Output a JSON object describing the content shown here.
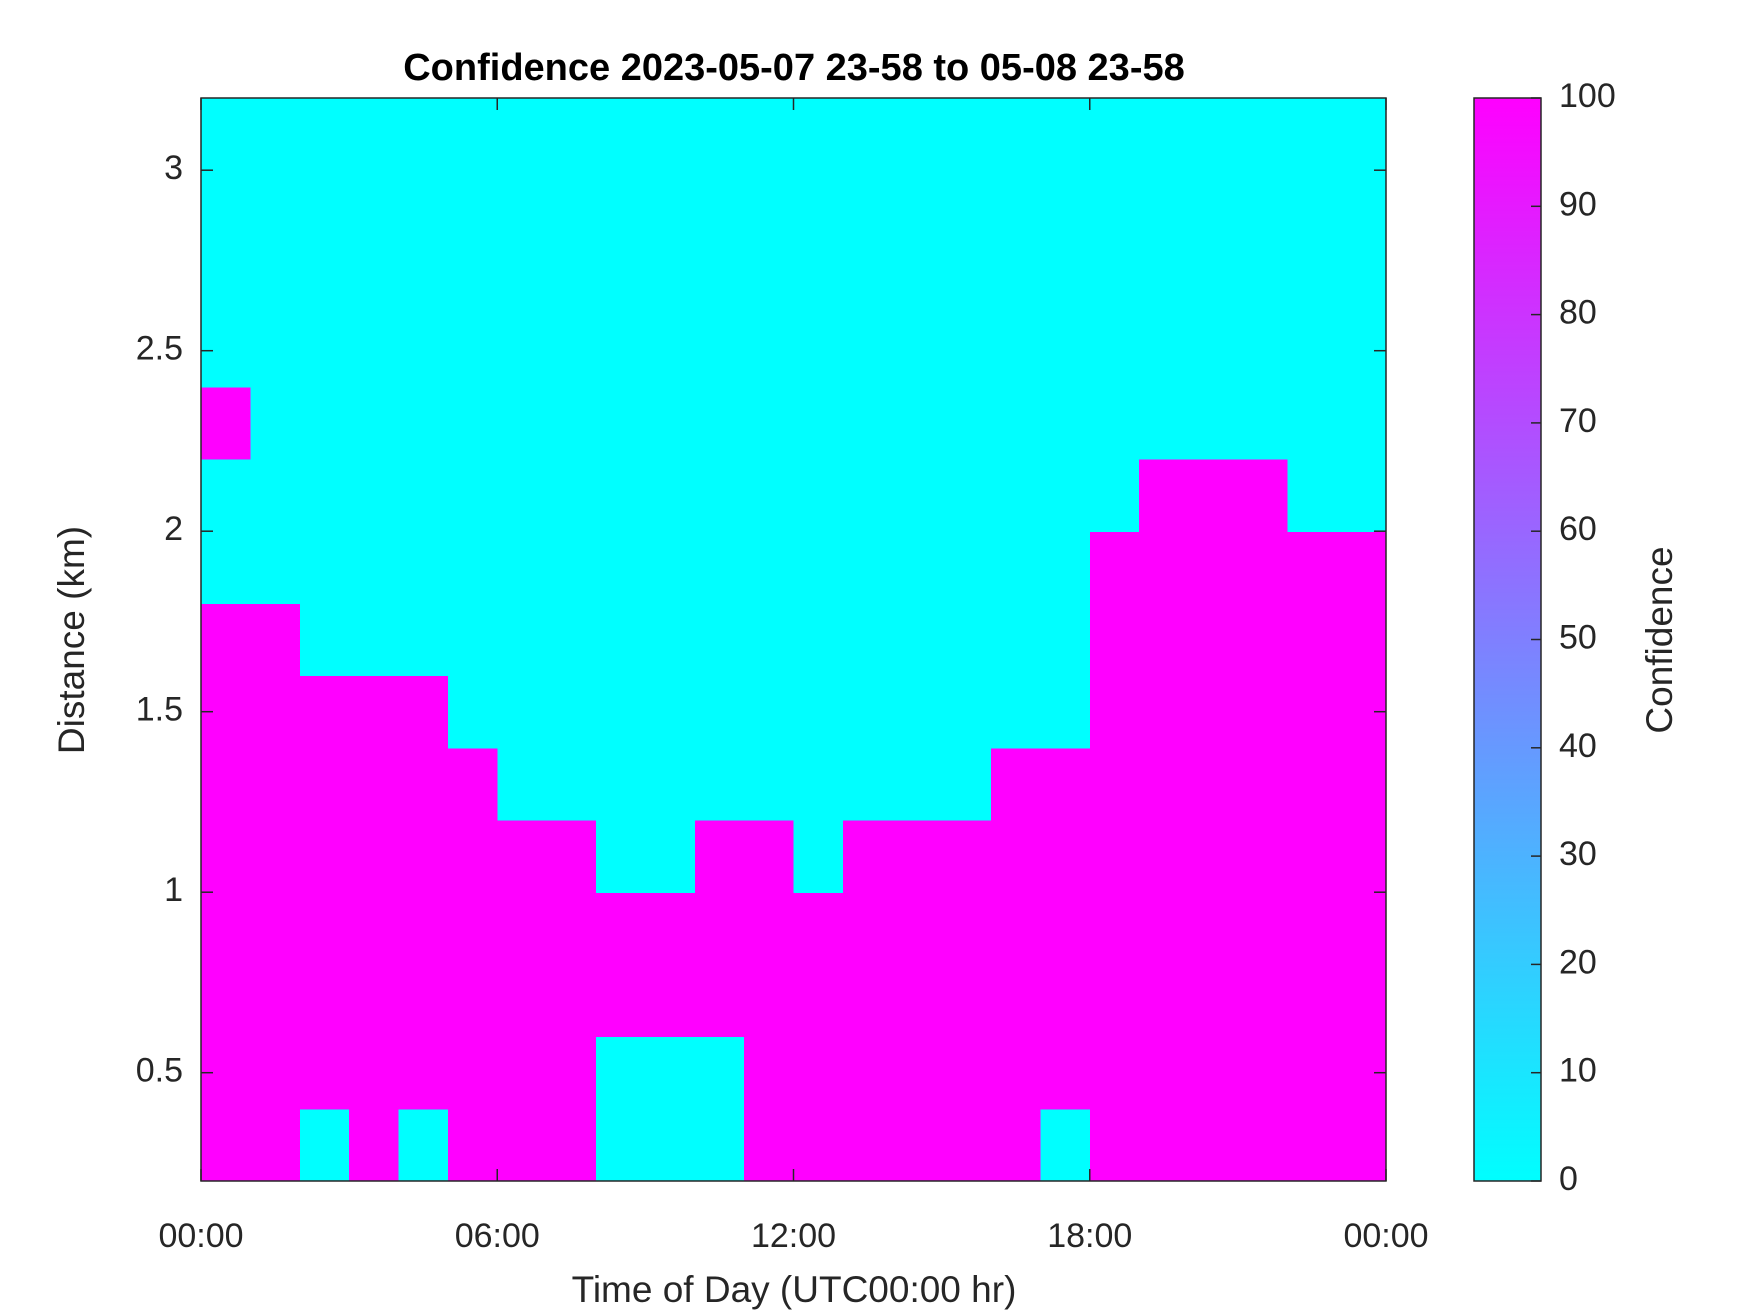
{
  "chart_data": {
    "type": "heatmap",
    "title": "Confidence 2023-05-07 23-58 to 05-08 23-58",
    "xlabel": "Time of Day (UTC00:00 hr)",
    "ylabel": "Distance (km)",
    "x": [
      0.5,
      1.5,
      2.5,
      3.5,
      4.5,
      5.5,
      6.5,
      7.5,
      8.5,
      9.5,
      10.5,
      11.5,
      12.5,
      13.5,
      14.5,
      15.5,
      16.5,
      17.5,
      18.5,
      19.5,
      20.5,
      21.5,
      22.5,
      23.5
    ],
    "y": [
      0.3,
      0.5,
      0.7,
      0.9,
      1.1,
      1.3,
      1.5,
      1.7,
      1.9,
      2.1,
      2.3,
      2.5,
      2.7,
      2.9,
      3.1
    ],
    "z": [
      [
        100,
        100,
        0,
        100,
        0,
        100,
        100,
        100,
        0,
        0,
        0,
        100,
        100,
        100,
        100,
        100,
        100,
        0,
        100,
        100,
        100,
        100,
        100,
        100
      ],
      [
        100,
        100,
        100,
        100,
        100,
        100,
        100,
        100,
        0,
        0,
        0,
        100,
        100,
        100,
        100,
        100,
        100,
        100,
        100,
        100,
        100,
        100,
        100,
        100
      ],
      [
        100,
        100,
        100,
        100,
        100,
        100,
        100,
        100,
        100,
        100,
        100,
        100,
        100,
        100,
        100,
        100,
        100,
        100,
        100,
        100,
        100,
        100,
        100,
        100
      ],
      [
        100,
        100,
        100,
        100,
        100,
        100,
        100,
        100,
        100,
        100,
        100,
        100,
        100,
        100,
        100,
        100,
        100,
        100,
        100,
        100,
        100,
        100,
        100,
        100
      ],
      [
        100,
        100,
        100,
        100,
        100,
        100,
        100,
        100,
        0,
        0,
        100,
        100,
        0,
        100,
        100,
        100,
        100,
        100,
        100,
        100,
        100,
        100,
        100,
        100
      ],
      [
        100,
        100,
        100,
        100,
        100,
        100,
        0,
        0,
        0,
        0,
        0,
        0,
        0,
        0,
        0,
        0,
        100,
        100,
        100,
        100,
        100,
        100,
        100,
        100
      ],
      [
        100,
        100,
        100,
        100,
        100,
        0,
        0,
        0,
        0,
        0,
        0,
        0,
        0,
        0,
        0,
        0,
        0,
        0,
        100,
        100,
        100,
        100,
        100,
        100
      ],
      [
        100,
        100,
        0,
        0,
        0,
        0,
        0,
        0,
        0,
        0,
        0,
        0,
        0,
        0,
        0,
        0,
        0,
        0,
        100,
        100,
        100,
        100,
        100,
        100
      ],
      [
        0,
        0,
        0,
        0,
        0,
        0,
        0,
        0,
        0,
        0,
        0,
        0,
        0,
        0,
        0,
        0,
        0,
        0,
        100,
        100,
        100,
        100,
        100,
        100
      ],
      [
        0,
        0,
        0,
        0,
        0,
        0,
        0,
        0,
        0,
        0,
        0,
        0,
        0,
        0,
        0,
        0,
        0,
        0,
        0,
        100,
        100,
        100,
        0,
        0
      ],
      [
        100,
        0,
        0,
        0,
        0,
        0,
        0,
        0,
        0,
        0,
        0,
        0,
        0,
        0,
        0,
        0,
        0,
        0,
        0,
        0,
        0,
        0,
        0,
        0
      ],
      [
        0,
        0,
        0,
        0,
        0,
        0,
        0,
        0,
        0,
        0,
        0,
        0,
        0,
        0,
        0,
        0,
        0,
        0,
        0,
        0,
        0,
        0,
        0,
        0
      ],
      [
        0,
        0,
        0,
        0,
        0,
        0,
        0,
        0,
        0,
        0,
        0,
        0,
        0,
        0,
        0,
        0,
        0,
        0,
        0,
        0,
        0,
        0,
        0,
        0
      ],
      [
        0,
        0,
        0,
        0,
        0,
        0,
        0,
        0,
        0,
        0,
        0,
        0,
        0,
        0,
        0,
        0,
        0,
        0,
        0,
        0,
        0,
        0,
        0,
        0
      ],
      [
        0,
        0,
        0,
        0,
        0,
        0,
        0,
        0,
        0,
        0,
        0,
        0,
        0,
        0,
        0,
        0,
        0,
        0,
        0,
        0,
        0,
        0,
        0,
        0
      ]
    ],
    "xlim": [
      0,
      24
    ],
    "xticks": [
      {
        "value": 0,
        "label": "00:00"
      },
      {
        "value": 6,
        "label": "06:00"
      },
      {
        "value": 12,
        "label": "12:00"
      },
      {
        "value": 18,
        "label": "18:00"
      },
      {
        "value": 24,
        "label": "00:00"
      }
    ],
    "ylim": [
      0.2,
      3.2
    ],
    "yticks": [
      0.5,
      1,
      1.5,
      2,
      2.5,
      3
    ],
    "colormap": [
      "#00ffff",
      "#ff00ff"
    ],
    "colorbar": {
      "label": "Confidence",
      "lim": [
        0,
        100
      ],
      "ticks": [
        0,
        10,
        20,
        30,
        40,
        50,
        60,
        70,
        80,
        90,
        100
      ]
    }
  }
}
